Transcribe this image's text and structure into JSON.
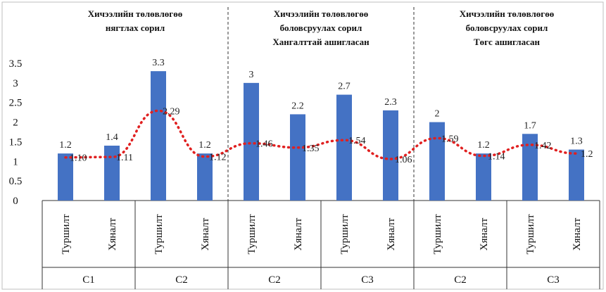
{
  "chart_data": {
    "type": "bar",
    "title": "",
    "xlabel": "",
    "ylabel": "",
    "ylim": [
      0,
      3.5
    ],
    "yticks": [
      "0",
      "0.5",
      "1",
      "1.5",
      "2",
      "2.5",
      "3",
      "3.5"
    ],
    "grid": false,
    "legend": "none",
    "panel_titles": [
      [
        "Хичээлийн төлөвлөгөө",
        "нягтлах сорил"
      ],
      [
        "Хичээлийн төлөвлөгөө",
        "боловсруулах сорил",
        "Хангалттай ашигласан"
      ],
      [
        "Хичээлийн төлөвлөгөө",
        "боловсруулах сорил",
        "Төгс ашигласан"
      ]
    ],
    "categories": [
      "Туршилт",
      "Хяналт",
      "Туршилт",
      "Хяналт",
      "Туршилт",
      "Хяналт",
      "Туршилт",
      "Хяналт",
      "Туршилт",
      "Хяналт",
      "Туршилт",
      "Хяналт"
    ],
    "groups": [
      "С1",
      "С2",
      "С2",
      "С3",
      "С2",
      "С3"
    ],
    "series": [
      {
        "values": [
          1.2,
          1.4,
          3.3,
          1.2,
          3,
          2.2,
          2.7,
          2.3,
          2,
          1.2,
          1.7,
          1.3
        ],
        "labels": [
          "1.2",
          "1.4",
          "3.3",
          "1.2",
          "3",
          "2.2",
          "2.7",
          "2.3",
          "2",
          "1.2",
          "1.7",
          "1.3"
        ],
        "color": "#4472c4"
      },
      {
        "values": [
          1.1,
          1.11,
          2.29,
          1.12,
          1.46,
          1.35,
          1.54,
          1.06,
          1.59,
          1.14,
          1.42,
          1.2
        ],
        "labels": [
          "1.10",
          "1.11",
          "2.29",
          "1.12",
          "1.46",
          "1.35",
          "1.54",
          "1.06",
          "1.59",
          "1.14",
          "1.42",
          "1.2"
        ],
        "color": "#e02020",
        "style": "dotted"
      }
    ]
  }
}
